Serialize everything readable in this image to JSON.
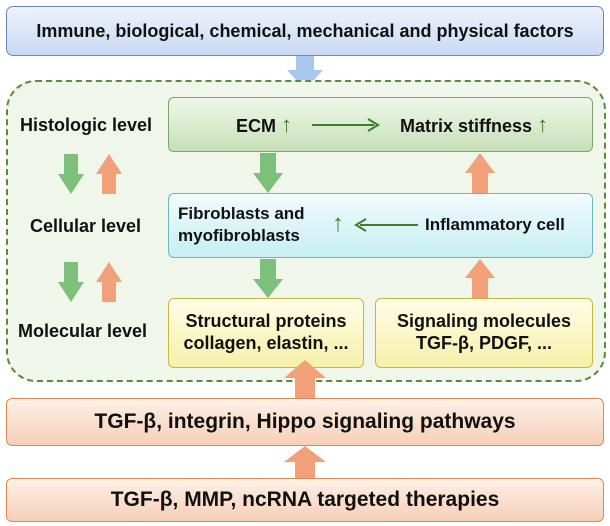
{
  "top_box": "Immune, biological, chemical, mechanical and physical factors",
  "levels": {
    "histologic": "Histologic level",
    "cellular": "Cellular level",
    "molecular": "Molecular level"
  },
  "ecm": {
    "label": "ECM",
    "up": "↑"
  },
  "matrix": {
    "label": "Matrix stiffness",
    "up": "↑"
  },
  "fibroblasts": {
    "line1": "Fibroblasts and",
    "line2": "myofibroblasts",
    "up": "↑"
  },
  "inflammatory": "Inflammatory cell",
  "structural": {
    "line1": "Structural proteins",
    "line2": "collagen, elastin, ..."
  },
  "signaling": {
    "line1": "Signaling molecules",
    "line2": "TGF-β, PDGF, ..."
  },
  "pathways": "TGF-β, integrin, Hippo signaling pathways",
  "therapies": "TGF-β, MMP, ncRNA targeted therapies",
  "colors": {
    "green_arrow": "#7cc07c",
    "orange_arrow": "#f2a07a",
    "blue_arrow": "#a9c6ef",
    "dark_green": "#3f7d2b"
  }
}
